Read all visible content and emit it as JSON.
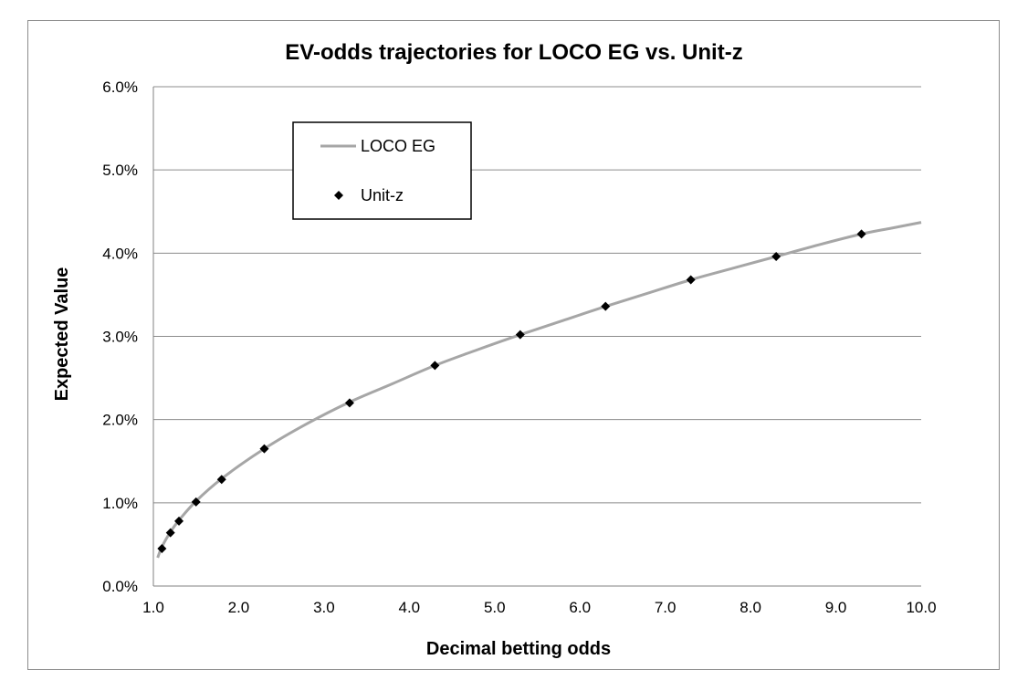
{
  "chart_data": {
    "type": "line",
    "title": "EV-odds trajectories for LOCO EG vs. Unit-z",
    "xlabel": "Decimal betting odds",
    "ylabel": "Expected Value",
    "xlim": [
      1.0,
      10.0
    ],
    "ylim": [
      0.0,
      0.06
    ],
    "x_ticks": [
      "1.0",
      "2.0",
      "3.0",
      "4.0",
      "5.0",
      "6.0",
      "7.0",
      "8.0",
      "9.0",
      "10.0"
    ],
    "y_ticks": [
      "0.0%",
      "1.0%",
      "2.0%",
      "3.0%",
      "4.0%",
      "5.0%",
      "6.0%"
    ],
    "grid": "horizontal",
    "legend_position": "top-left",
    "series": [
      {
        "name": "LOCO EG",
        "kind": "line",
        "color": "#a6a6a6",
        "x": [
          1.05,
          1.1,
          1.2,
          1.3,
          1.5,
          1.8,
          2.3,
          2.8,
          3.3,
          3.8,
          4.3,
          4.8,
          5.3,
          5.8,
          6.3,
          6.8,
          7.3,
          7.8,
          8.3,
          8.8,
          9.3,
          9.65,
          10.0
        ],
        "y": [
          0.0034,
          0.0047,
          0.0065,
          0.0079,
          0.0102,
          0.0129,
          0.0165,
          0.0195,
          0.0221,
          0.0243,
          0.0265,
          0.0284,
          0.0302,
          0.0319,
          0.0336,
          0.0352,
          0.0368,
          0.0382,
          0.0396,
          0.041,
          0.0423,
          0.043,
          0.0437
        ]
      },
      {
        "name": "Unit-z",
        "kind": "marker",
        "marker": "diamond",
        "color": "#000000",
        "x": [
          1.1,
          1.2,
          1.3,
          1.5,
          1.8,
          2.3,
          3.3,
          4.3,
          5.3,
          6.3,
          7.3,
          8.3,
          9.3
        ],
        "y": [
          0.0045,
          0.0064,
          0.0078,
          0.0101,
          0.0128,
          0.0165,
          0.022,
          0.0265,
          0.0302,
          0.0336,
          0.0368,
          0.0396,
          0.0423
        ]
      }
    ]
  }
}
